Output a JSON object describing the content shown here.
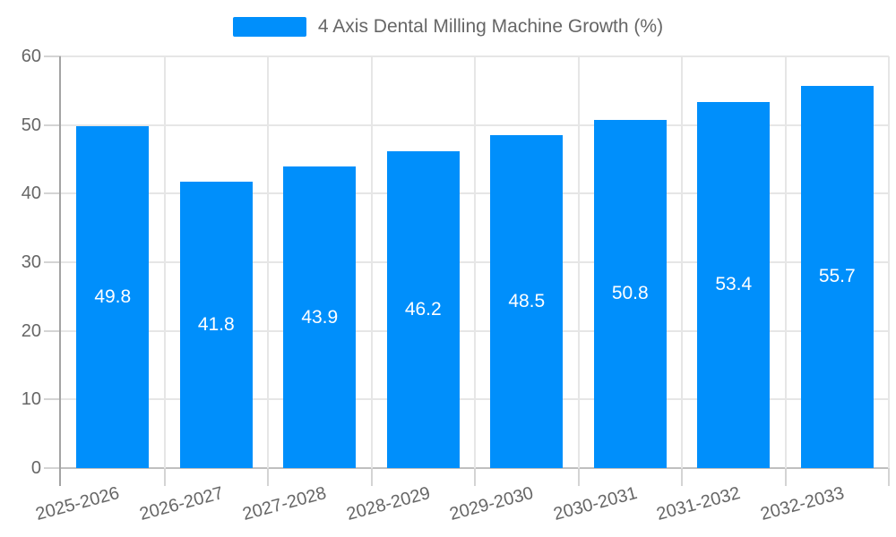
{
  "legend": {
    "label": "4 Axis Dental Milling Machine Growth (%)"
  },
  "chart_data": {
    "type": "bar",
    "title": "4 Axis Dental Milling Machine Growth (%)",
    "series_name": "4 Axis Dental Milling Machine Growth (%)",
    "categories": [
      "2025-2026",
      "2026-2027",
      "2027-2028",
      "2028-2029",
      "2029-2030",
      "2030-2031",
      "2031-2032",
      "2032-2033"
    ],
    "values": [
      49.8,
      41.8,
      43.9,
      46.2,
      48.5,
      50.8,
      53.4,
      55.7
    ],
    "value_labels_shown": [
      49.8,
      41.8,
      43.9,
      46.2,
      48.5,
      50.8,
      53.4,
      55.7
    ],
    "xlabel": "",
    "ylabel": "",
    "ylim": [
      0,
      60
    ],
    "yticks": [
      0,
      10,
      20,
      30,
      40,
      50,
      60
    ],
    "grid": true,
    "legend_position": "top",
    "value_label_position": "inside-center",
    "x_tick_rotation_deg": -15
  },
  "colors": {
    "bar": "#008FFB",
    "grid": "#e6e6e6",
    "axis_y": "#a3a3a3",
    "axis_x": "#bfbfbf",
    "tick": "#d4d4d4",
    "text": "#666666",
    "value_label": "#ffffff",
    "background": "#ffffff"
  }
}
